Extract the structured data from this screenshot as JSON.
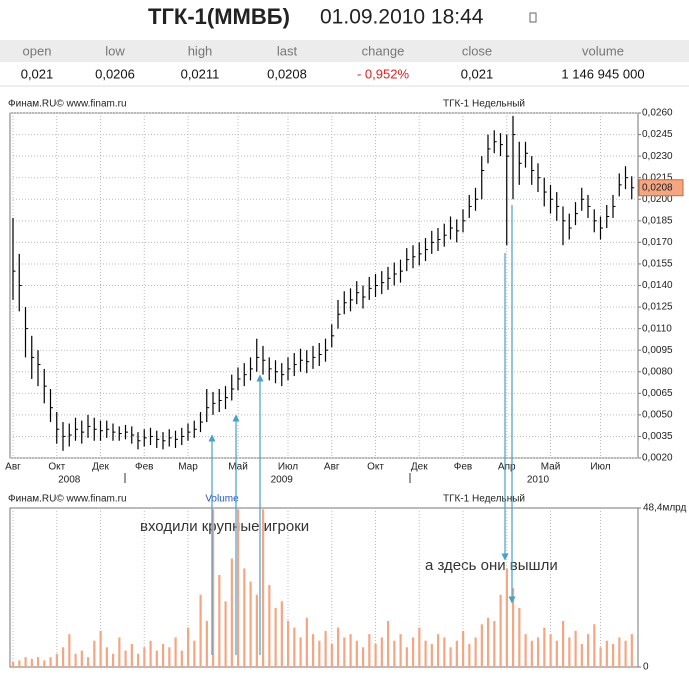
{
  "header": {
    "title": "ТГК-1(ММВБ)",
    "datetime": "01.09.2010 18:44"
  },
  "table": {
    "columns": [
      "open",
      "low",
      "high",
      "last",
      "change",
      "close",
      "volume"
    ],
    "values": [
      "0,021",
      "0,0206",
      "0,0211",
      "0,0208",
      "- 0,952%",
      "0,021",
      "1 146 945 000"
    ]
  },
  "chart_data": [
    {
      "type": "ohlc",
      "source": "Финам.RU©  www.finam.ru",
      "title": "ТГК-1 Недельный",
      "color": "#000000",
      "categories": [
        "Авг",
        null,
        null,
        null,
        null,
        null,
        null,
        "Окт",
        null,
        null,
        null,
        null,
        null,
        null,
        "Дек",
        null,
        null,
        null,
        null,
        null,
        null,
        "Фев",
        null,
        null,
        null,
        null,
        null,
        null,
        "Мар",
        null,
        null,
        null,
        null,
        null,
        null,
        null,
        "Май",
        null,
        null,
        null,
        null,
        null,
        null,
        null,
        "Июл",
        null,
        null,
        null,
        null,
        null,
        null,
        "Авг",
        null,
        null,
        null,
        null,
        null,
        null,
        "Окт",
        null,
        null,
        null,
        null,
        null,
        null,
        "Дек",
        null,
        null,
        null,
        null,
        null,
        null,
        "Фев",
        null,
        null,
        null,
        null,
        null,
        null,
        "Апр",
        null,
        null,
        null,
        null,
        null,
        null,
        "Май",
        null,
        null,
        null,
        null,
        null,
        null,
        null,
        "Июл",
        null,
        null,
        null,
        null,
        null
      ],
      "year_categories": [
        null,
        null,
        null,
        null,
        null,
        null,
        null,
        null,
        null,
        "2008",
        null,
        null,
        null,
        null,
        null,
        null,
        null,
        null,
        null,
        null,
        null,
        null,
        null,
        null,
        null,
        null,
        null,
        null,
        null,
        null,
        null,
        null,
        null,
        null,
        null,
        null,
        null,
        null,
        null,
        null,
        null,
        null,
        null,
        "2009",
        null,
        null,
        null,
        null,
        null,
        null,
        null,
        null,
        null,
        null,
        null,
        null,
        null,
        null,
        null,
        null,
        null,
        null,
        null,
        null,
        null,
        null,
        null,
        null,
        null,
        null,
        null,
        null,
        null,
        null,
        null,
        null,
        null,
        null,
        null,
        null,
        null,
        null,
        null,
        null,
        "2010",
        null,
        null,
        null,
        null,
        null,
        null,
        null,
        null,
        null,
        null,
        null,
        null,
        null,
        null,
        null
      ],
      "high": [
        0.0187,
        0.0162,
        0.0125,
        0.0105,
        0.0095,
        0.0082,
        0.0068,
        0.0052,
        0.0045,
        0.0044,
        0.0048,
        0.0046,
        0.005,
        0.0048,
        0.0046,
        0.0046,
        0.0044,
        0.0042,
        0.0043,
        0.0042,
        0.0038,
        0.004,
        0.0041,
        0.0039,
        0.0038,
        0.004,
        0.0039,
        0.0041,
        0.0044,
        0.0046,
        0.0052,
        0.0068,
        0.0066,
        0.0068,
        0.007,
        0.0078,
        0.0083,
        0.0086,
        0.009,
        0.0103,
        0.0098,
        0.009,
        0.0088,
        0.0086,
        0.009,
        0.0093,
        0.0096,
        0.0095,
        0.0098,
        0.01,
        0.0103,
        0.0113,
        0.013,
        0.0136,
        0.0138,
        0.0143,
        0.014,
        0.0146,
        0.0148,
        0.015,
        0.0153,
        0.0156,
        0.0158,
        0.0166,
        0.0168,
        0.017,
        0.0173,
        0.0178,
        0.018,
        0.0183,
        0.0188,
        0.0186,
        0.0193,
        0.0203,
        0.0208,
        0.023,
        0.0245,
        0.0248,
        0.0246,
        0.0245,
        0.0258,
        0.024,
        0.024,
        0.023,
        0.0225,
        0.0215,
        0.021,
        0.0205,
        0.0195,
        0.019,
        0.0198,
        0.0208,
        0.0203,
        0.0193,
        0.0188,
        0.0196,
        0.0203,
        0.0218,
        0.0223,
        0.0216
      ],
      "low": [
        0.013,
        0.0122,
        0.009,
        0.0075,
        0.007,
        0.0058,
        0.0045,
        0.003,
        0.0025,
        0.0028,
        0.0032,
        0.003,
        0.0034,
        0.0032,
        0.0032,
        0.0034,
        0.0032,
        0.0032,
        0.0033,
        0.003,
        0.0026,
        0.0028,
        0.0029,
        0.0027,
        0.0026,
        0.0028,
        0.0027,
        0.0029,
        0.0032,
        0.0034,
        0.0038,
        0.0045,
        0.005,
        0.0052,
        0.0054,
        0.006,
        0.0067,
        0.007,
        0.0074,
        0.008,
        0.0078,
        0.0074,
        0.0072,
        0.007,
        0.0074,
        0.0077,
        0.008,
        0.0079,
        0.0082,
        0.0084,
        0.0087,
        0.0097,
        0.011,
        0.012,
        0.0122,
        0.0127,
        0.0124,
        0.013,
        0.0132,
        0.0134,
        0.0137,
        0.014,
        0.0142,
        0.015,
        0.0152,
        0.0154,
        0.0157,
        0.0162,
        0.0164,
        0.0167,
        0.0172,
        0.017,
        0.0177,
        0.0187,
        0.0192,
        0.02,
        0.0225,
        0.0232,
        0.023,
        0.0168,
        0.02,
        0.021,
        0.0222,
        0.021,
        0.0205,
        0.0195,
        0.019,
        0.0185,
        0.0168,
        0.0172,
        0.0182,
        0.0192,
        0.0187,
        0.0177,
        0.0172,
        0.018,
        0.0187,
        0.0202,
        0.0207,
        0.02
      ],
      "close": [
        0.015,
        0.014,
        0.011,
        0.009,
        0.0085,
        0.007,
        0.0055,
        0.004,
        0.0035,
        0.0036,
        0.004,
        0.0038,
        0.0042,
        0.004,
        0.0039,
        0.004,
        0.0038,
        0.0037,
        0.0038,
        0.0036,
        0.0032,
        0.0034,
        0.0035,
        0.0033,
        0.0032,
        0.0034,
        0.0033,
        0.0035,
        0.0038,
        0.004,
        0.0045,
        0.0055,
        0.0058,
        0.006,
        0.0062,
        0.0068,
        0.0075,
        0.0078,
        0.0082,
        0.009,
        0.0088,
        0.0082,
        0.008,
        0.0078,
        0.0082,
        0.0085,
        0.0088,
        0.0087,
        0.009,
        0.0092,
        0.0095,
        0.0105,
        0.012,
        0.0128,
        0.013,
        0.0135,
        0.0132,
        0.0138,
        0.014,
        0.0142,
        0.0145,
        0.0148,
        0.015,
        0.0158,
        0.016,
        0.0162,
        0.0165,
        0.017,
        0.0172,
        0.0175,
        0.018,
        0.0178,
        0.0185,
        0.0195,
        0.02,
        0.022,
        0.0235,
        0.024,
        0.0238,
        0.023,
        0.0245,
        0.0225,
        0.0232,
        0.022,
        0.0215,
        0.0205,
        0.02,
        0.0195,
        0.0185,
        0.018,
        0.019,
        0.02,
        0.0195,
        0.0185,
        0.018,
        0.0188,
        0.0195,
        0.021,
        0.0215,
        0.0208
      ],
      "ylim": [
        0.002,
        0.026
      ],
      "yticks": [
        {
          "value": 0.026,
          "label": "0,0260"
        },
        {
          "value": 0.0245,
          "label": "0,0245"
        },
        {
          "value": 0.023,
          "label": "0,0230"
        },
        {
          "value": 0.0215,
          "label": "0,0215"
        },
        {
          "value": 0.02,
          "label": "0,0200"
        },
        {
          "value": 0.0185,
          "label": "0,0185"
        },
        {
          "value": 0.017,
          "label": "0,0170"
        },
        {
          "value": 0.0155,
          "label": "0,0155"
        },
        {
          "value": 0.014,
          "label": "0,0140"
        },
        {
          "value": 0.0125,
          "label": "0,0125"
        },
        {
          "value": 0.011,
          "label": "0,0110"
        },
        {
          "value": 0.0095,
          "label": "0,0095"
        },
        {
          "value": 0.008,
          "label": "0,0080"
        },
        {
          "value": 0.0065,
          "label": "0,0065"
        },
        {
          "value": 0.005,
          "label": "0,0050"
        },
        {
          "value": 0.0035,
          "label": "0,0035"
        },
        {
          "value": 0.002,
          "label": "0,0020"
        }
      ],
      "last_price": {
        "value": 0.0208,
        "label": "0,0208"
      },
      "last_price_color": "#f4a582",
      "grid": true,
      "annotations": [
        "входили крупные игроки",
        "а здесь они вышли"
      ]
    },
    {
      "type": "bar",
      "source": "Финам.RU©  www.finam.ru",
      "legend": "Volume",
      "title": "ТГК-1 Недельный",
      "color": "#f4a582",
      "values": [
        1.5,
        2,
        3,
        2.5,
        3,
        2,
        3,
        4,
        6,
        10,
        4,
        5,
        3,
        8,
        11,
        6,
        4,
        9,
        5,
        7,
        4,
        6,
        8,
        5,
        7,
        6,
        9,
        5,
        12,
        8,
        22,
        14,
        48,
        28,
        20,
        33,
        48,
        30,
        26,
        22,
        48,
        25,
        18,
        20,
        14,
        12,
        9,
        15,
        10,
        8,
        11,
        7,
        12,
        9,
        10,
        8,
        6,
        10,
        7,
        9,
        14,
        8,
        10,
        6,
        9,
        12,
        8,
        7,
        10,
        9,
        6,
        8,
        11,
        7,
        9,
        13,
        15,
        14,
        22,
        30,
        24,
        18,
        10,
        8,
        9,
        12,
        10,
        8,
        14,
        9,
        11,
        7,
        10,
        13,
        6,
        8,
        7,
        9,
        8,
        10
      ],
      "ylim": [
        0,
        48.4
      ],
      "yticks": [
        0,
        {
          "value": 48.4,
          "label": "48,4млрд"
        }
      ]
    }
  ]
}
